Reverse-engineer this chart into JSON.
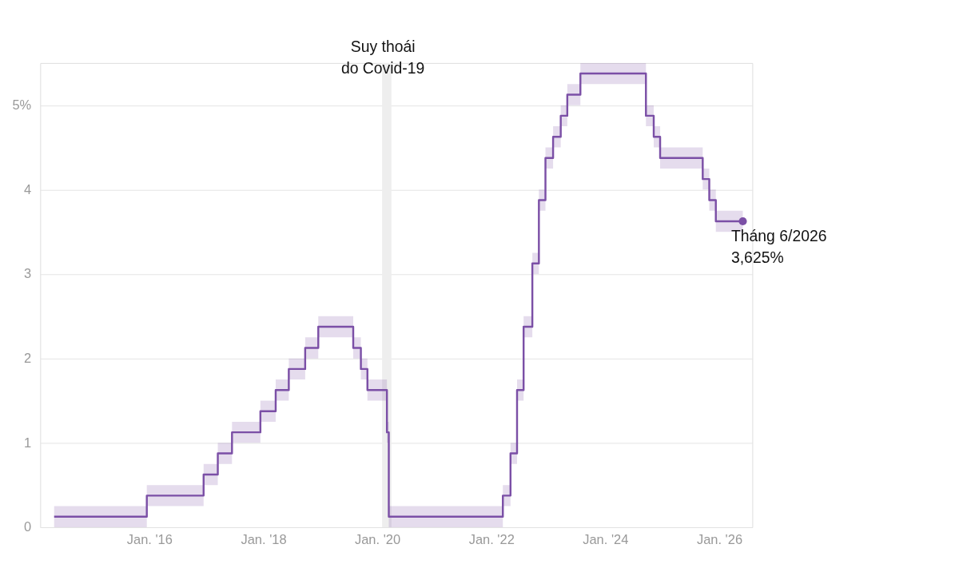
{
  "chart_data": {
    "type": "step",
    "x": [
      "2014-05-01",
      "2015-12-16",
      "2016-12-14",
      "2017-03-15",
      "2017-06-14",
      "2017-12-13",
      "2018-03-21",
      "2018-06-13",
      "2018-09-26",
      "2018-12-19",
      "2019-07-31",
      "2019-09-18",
      "2019-10-30",
      "2020-03-03",
      "2020-03-15",
      "2022-03-16",
      "2022-05-04",
      "2022-06-15",
      "2022-07-27",
      "2022-09-21",
      "2022-11-02",
      "2022-12-14",
      "2023-02-01",
      "2023-03-22",
      "2023-05-03",
      "2023-07-26",
      "2024-09-18",
      "2024-11-07",
      "2024-12-18",
      "2025-09-17",
      "2025-10-29",
      "2025-12-10",
      "2026-06-01"
    ],
    "series": [
      {
        "color": "#7b4fa6",
        "values": [
          0.125,
          0.375,
          0.625,
          0.875,
          1.125,
          1.375,
          1.625,
          1.875,
          2.125,
          2.375,
          2.125,
          1.875,
          1.625,
          1.125,
          0.125,
          0.375,
          0.875,
          1.625,
          2.375,
          3.125,
          3.875,
          4.375,
          4.625,
          4.875,
          5.125,
          5.375,
          4.875,
          4.625,
          4.375,
          4.125,
          3.875,
          3.625,
          3.625
        ],
        "lower": [
          0,
          0.25,
          0.5,
          0.75,
          1,
          1.25,
          1.5,
          1.75,
          2,
          2.25,
          2,
          1.75,
          1.5,
          1,
          0,
          0.25,
          0.75,
          1.5,
          2.25,
          3,
          3.75,
          4.25,
          4.5,
          4.75,
          5,
          5.25,
          4.75,
          4.5,
          4.25,
          4,
          3.75,
          3.5,
          3.5
        ],
        "upper": [
          0.25,
          0.5,
          0.75,
          1,
          1.25,
          1.5,
          1.75,
          2,
          2.25,
          2.5,
          2.25,
          2,
          1.75,
          1.25,
          0.25,
          0.5,
          1,
          1.75,
          2.5,
          3.25,
          4,
          4.5,
          4.75,
          5,
          5.25,
          5.5,
          5,
          4.75,
          4.5,
          4.25,
          4,
          3.75,
          3.75
        ]
      }
    ],
    "xlim": [
      "2014-02-01",
      "2026-08-01"
    ],
    "xticks": [
      {
        "value": "2016-01-01",
        "label": "Jan. '16"
      },
      {
        "value": "2018-01-01",
        "label": "Jan. '18"
      },
      {
        "value": "2020-01-01",
        "label": "Jan. '20"
      },
      {
        "value": "2022-01-01",
        "label": "Jan. '22"
      },
      {
        "value": "2024-01-01",
        "label": "Jan. '24"
      },
      {
        "value": "2026-01-01",
        "label": "Jan. '26"
      }
    ],
    "ylim": [
      0,
      5.5
    ],
    "yticks": [
      0,
      1,
      2,
      3,
      4,
      {
        "value": 5,
        "label": "5%"
      }
    ],
    "grid": "y",
    "bands": [
      {
        "axis": "x",
        "from": "2020-02-01",
        "to": "2020-04-01",
        "label": "Suy thoái\ndo Covid-19",
        "color": "#eeeeee"
      }
    ],
    "annotations": [
      {
        "text": "Tháng 6/2026\n3,625%",
        "x": "2026-06-01",
        "y": 3.625
      }
    ]
  }
}
